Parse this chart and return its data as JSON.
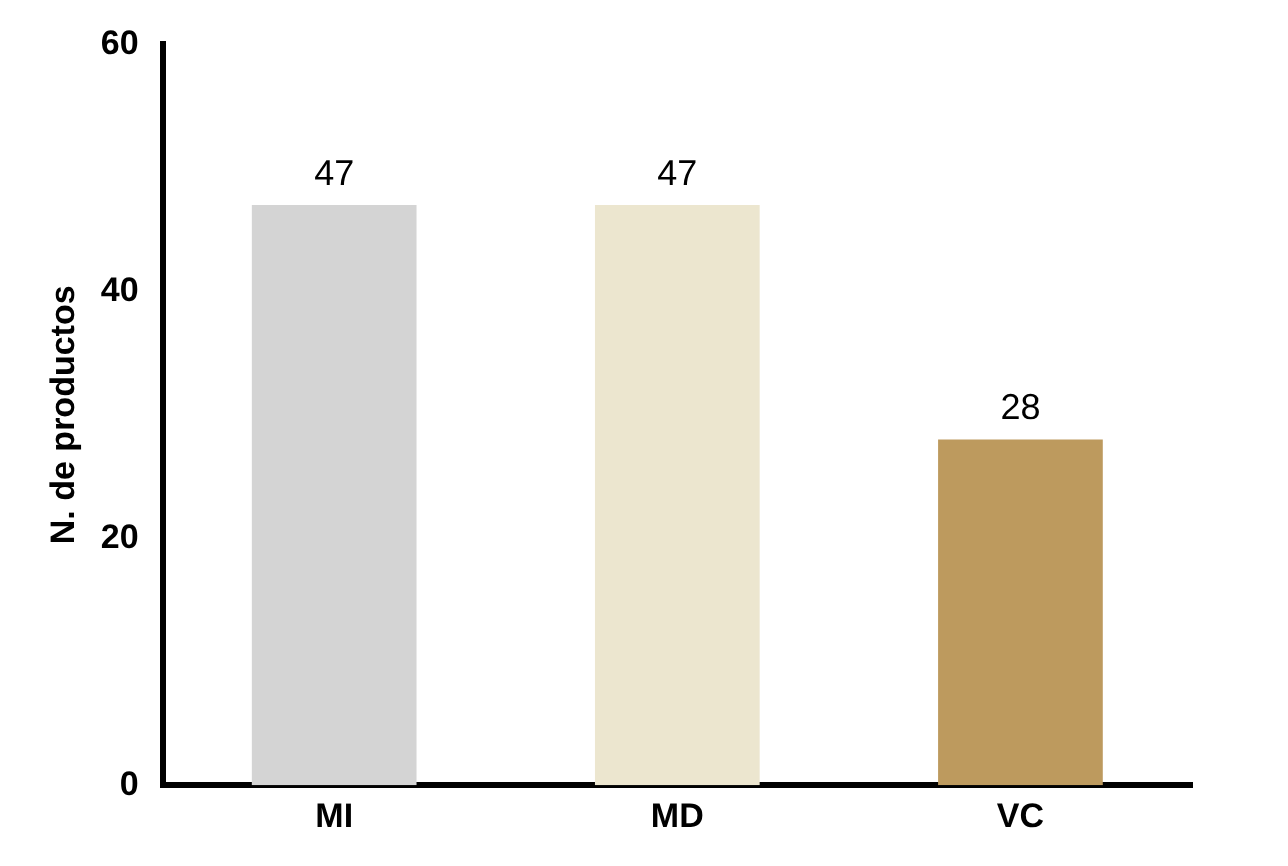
{
  "chart_data": {
    "type": "bar",
    "ylabel": "N. de productos",
    "categories": [
      "MI",
      "MD",
      "VC"
    ],
    "values": [
      47,
      47,
      28
    ],
    "colors": [
      "#d4d4d4",
      "#ece6cf",
      "#bd9a5e"
    ],
    "ylim": [
      0,
      60
    ],
    "yticks": [
      0,
      20,
      40,
      60
    ],
    "grid": false,
    "legend": false,
    "data_labels": true
  }
}
